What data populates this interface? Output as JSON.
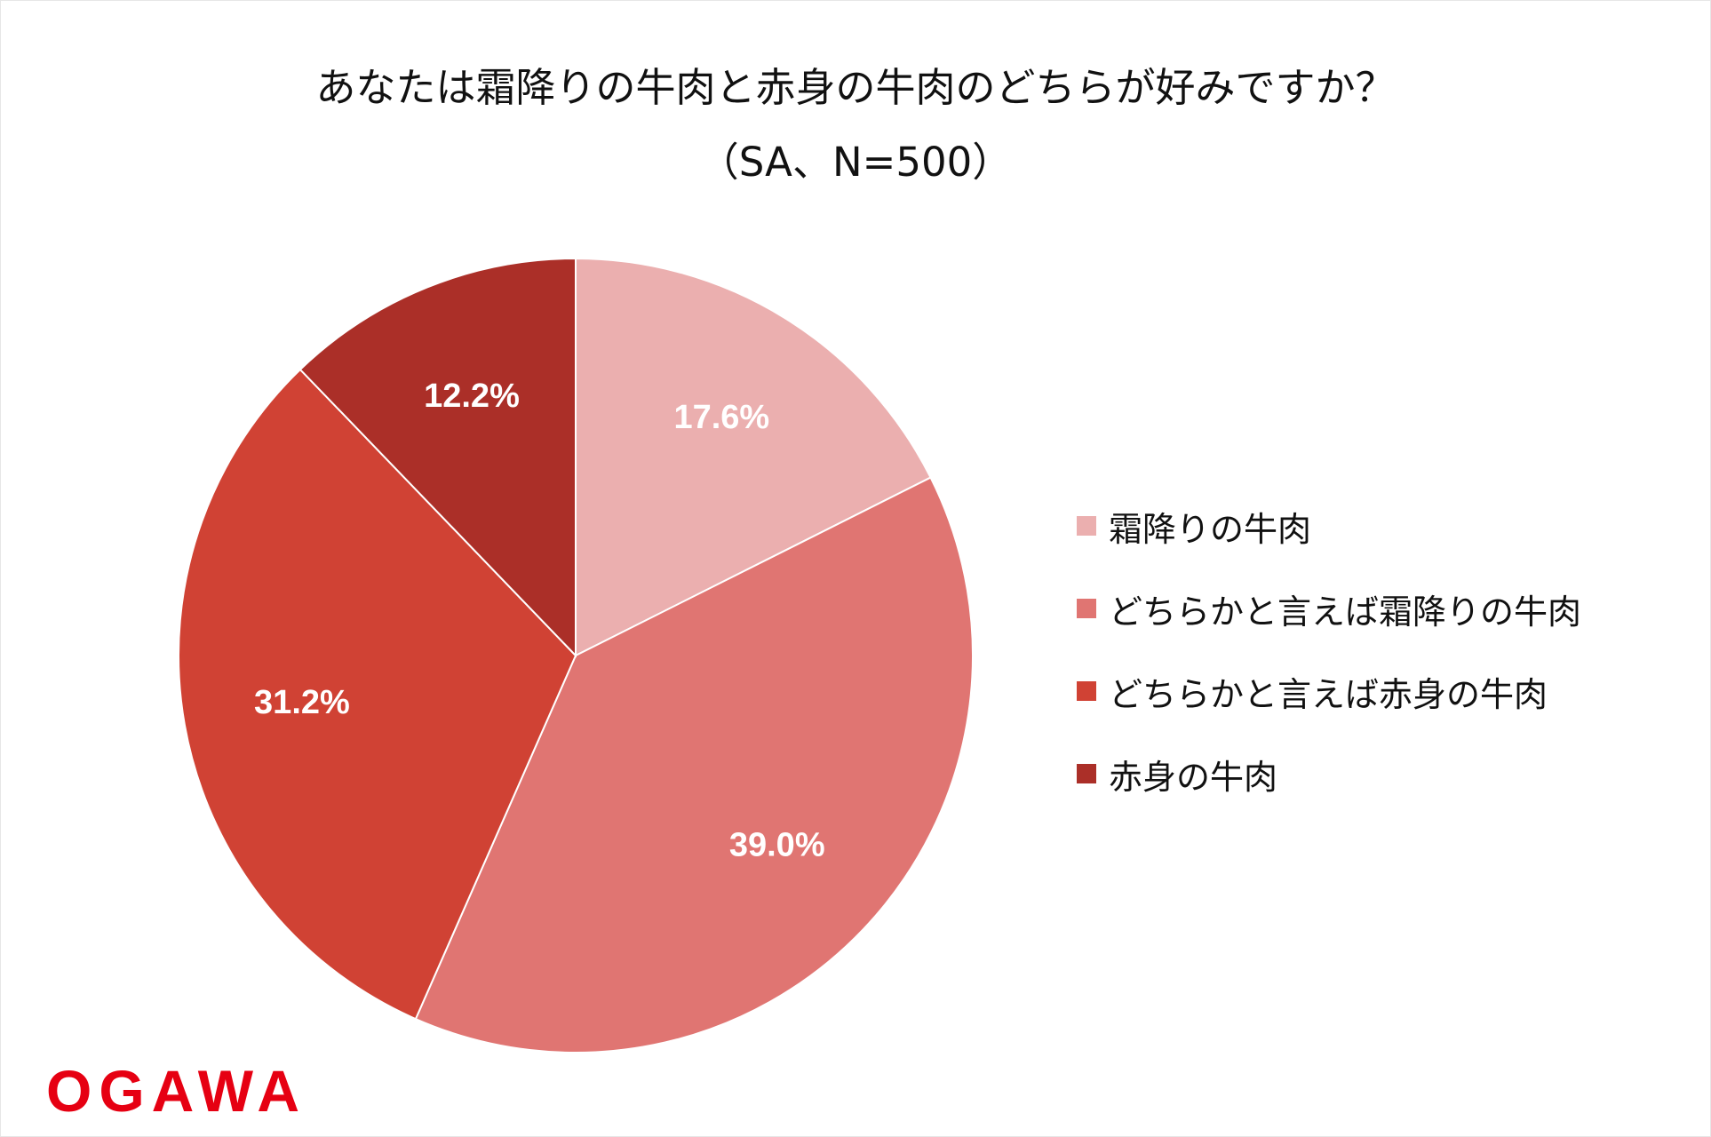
{
  "title": {
    "line1": "あなたは霜降りの牛肉と赤身の牛肉のどちらが好みですか？",
    "line2": "（SA、N=500）"
  },
  "chart_data": {
    "type": "pie",
    "start": "12 o'clock",
    "direction": "clockwise",
    "categories": [
      "霜降りの牛肉",
      "どちらかと言えば霜降りの牛肉",
      "どちらかと言えば赤身の牛肉",
      "赤身の牛肉"
    ],
    "values": [
      17.6,
      39.0,
      31.2,
      12.2
    ],
    "value_labels": [
      "17.6%",
      "39.0%",
      "31.2%",
      "12.2%"
    ],
    "colors": [
      "#ebafaf",
      "#e07572",
      "#d04234",
      "#ab2f28"
    ],
    "legend_position": "right"
  },
  "logo": {
    "text": "OGAWA",
    "color": "#e60012"
  }
}
